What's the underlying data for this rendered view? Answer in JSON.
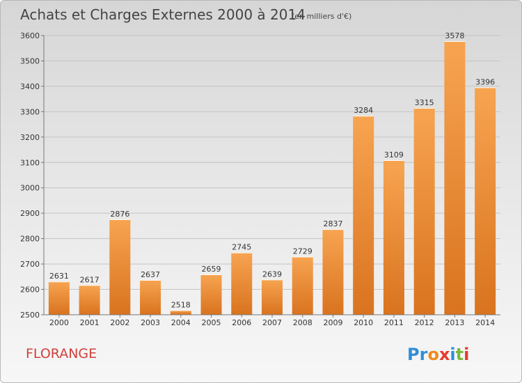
{
  "title": "Achats et Charges Externes 2000 à 2014",
  "unit_note": "(en milliers d'€)",
  "city": "FLORANGE",
  "logo": {
    "text": "Proxiti",
    "letter_colors": [
      "#2e8fd8",
      "#2e8fd8",
      "#f08a1c",
      "#e8392f",
      "#2e8fd8",
      "#7ab93b",
      "#e8392f"
    ]
  },
  "colors": {
    "bar_light": "#f7a451",
    "bar_dark": "#d9731f",
    "title": "#444444",
    "city": "#d0403a"
  },
  "chart_data": {
    "type": "bar",
    "title": "Achats et Charges Externes 2000 à 2014",
    "xlabel": "",
    "ylabel": "",
    "categories": [
      "2000",
      "2001",
      "2002",
      "2003",
      "2004",
      "2005",
      "2006",
      "2007",
      "2008",
      "2009",
      "2010",
      "2011",
      "2012",
      "2013",
      "2014"
    ],
    "values": [
      2631,
      2617,
      2876,
      2637,
      2518,
      2659,
      2745,
      2639,
      2729,
      2837,
      3284,
      3109,
      3315,
      3578,
      3396
    ],
    "ylim": [
      2500,
      3600
    ],
    "yticks": [
      2500,
      2600,
      2700,
      2800,
      2900,
      3000,
      3100,
      3200,
      3300,
      3400,
      3500,
      3600
    ],
    "grid": true,
    "legend": "none"
  }
}
